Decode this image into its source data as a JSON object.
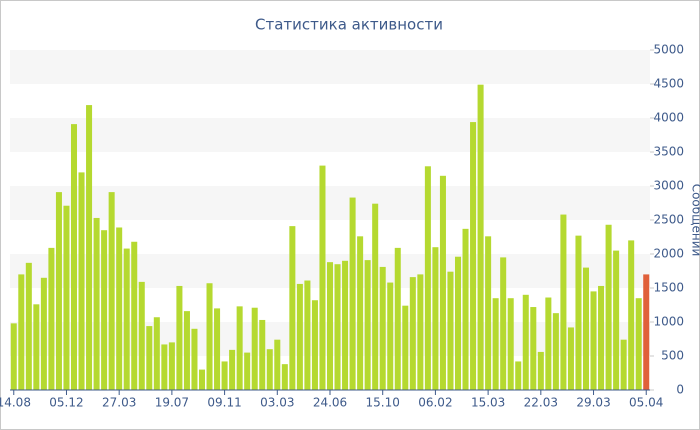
{
  "chart_data": {
    "type": "bar",
    "title": "Статистика активности",
    "y_label": "Сообщений",
    "categories": [
      "14.08",
      null,
      null,
      null,
      null,
      null,
      null,
      "05.12",
      null,
      null,
      null,
      null,
      null,
      null,
      "27.03",
      null,
      null,
      null,
      null,
      null,
      null,
      "19.07",
      null,
      null,
      null,
      null,
      null,
      null,
      "09.11",
      null,
      null,
      null,
      null,
      null,
      null,
      "03.03",
      null,
      null,
      null,
      null,
      null,
      null,
      "24.06",
      null,
      null,
      null,
      null,
      null,
      null,
      "15.10",
      null,
      null,
      null,
      null,
      null,
      null,
      "06.02",
      null,
      null,
      null,
      null,
      null,
      null,
      "15.03",
      null,
      null,
      null,
      null,
      null,
      null,
      "22.03",
      null,
      null,
      null,
      null,
      null,
      null,
      "29.03",
      null,
      null,
      null,
      null,
      null,
      null,
      "05.04"
    ],
    "values": [
      980,
      1700,
      1870,
      1260,
      1650,
      2090,
      2910,
      2710,
      3910,
      3200,
      4190,
      2530,
      2350,
      2910,
      2390,
      2080,
      2180,
      1590,
      940,
      1070,
      670,
      700,
      1530,
      1160,
      900,
      300,
      1570,
      1200,
      420,
      590,
      1230,
      550,
      1210,
      1030,
      600,
      740,
      380,
      2410,
      1560,
      1610,
      1320,
      3300,
      1880,
      1850,
      1900,
      2830,
      2260,
      1910,
      2740,
      1810,
      1580,
      2090,
      1240,
      1660,
      1700,
      3290,
      2100,
      3150,
      1740,
      1960,
      2370,
      3940,
      4490,
      2260,
      1350,
      1950,
      1350,
      420,
      1400,
      1220,
      560,
      1360,
      1130,
      2580,
      920,
      2270,
      1800,
      1450,
      1530,
      2430,
      2050,
      740,
      2200,
      1350,
      1700
    ],
    "color": "#b5d930",
    "highlight": {
      "index": 84,
      "color": "#e0603a"
    },
    "ylim": [
      0,
      5000
    ],
    "yticks": [
      0,
      500,
      1000,
      1500,
      2000,
      2500,
      3000,
      3500,
      4000,
      4500,
      5000
    ],
    "bands": true,
    "y_axis_side": "right"
  }
}
